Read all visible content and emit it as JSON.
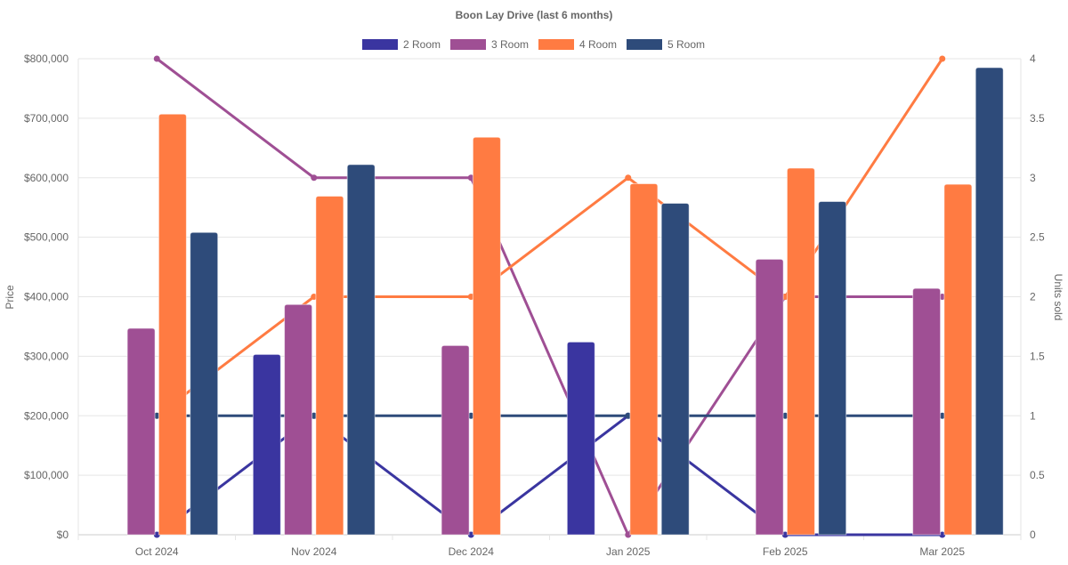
{
  "chart_data": {
    "type": "bar",
    "title": "Boon Lay Drive (last 6 months)",
    "categories": [
      "Oct 2024",
      "Nov 2024",
      "Dec 2024",
      "Jan 2025",
      "Feb 2025",
      "Mar 2025"
    ],
    "ylabel": "Price",
    "y2label": "Units sold",
    "ylim": [
      0,
      800000
    ],
    "y2lim": [
      0,
      4
    ],
    "yticks": [
      "$0",
      "$100,000",
      "$200,000",
      "$300,000",
      "$400,000",
      "$500,000",
      "$600,000",
      "$700,000",
      "$800,000"
    ],
    "y2ticks": [
      "0",
      "0.5",
      "1",
      "1.5",
      "2",
      "2.5",
      "3",
      "3.5",
      "4"
    ],
    "legend_position": "top",
    "grid": true,
    "series": [
      {
        "name": "2 Room",
        "color": "#3a35a0",
        "price": [
          null,
          303000,
          null,
          324000,
          null,
          null
        ],
        "units": [
          0,
          1,
          0,
          1,
          0,
          0
        ]
      },
      {
        "name": "3 Room",
        "color": "#9f4f94",
        "price": [
          347000,
          387000,
          318000,
          null,
          463000,
          414000
        ],
        "units": [
          4,
          3,
          3,
          0,
          2,
          2
        ]
      },
      {
        "name": "4 Room",
        "color": "#ff7b42",
        "price": [
          707000,
          569000,
          668000,
          590000,
          616000,
          589000
        ],
        "units": [
          1,
          2,
          2,
          3,
          2,
          4
        ]
      },
      {
        "name": "5 Room",
        "color": "#2e4b7a",
        "price": [
          508000,
          622000,
          null,
          557000,
          560000,
          785000
        ],
        "units": [
          1,
          1,
          1,
          1,
          1,
          1
        ]
      }
    ]
  }
}
